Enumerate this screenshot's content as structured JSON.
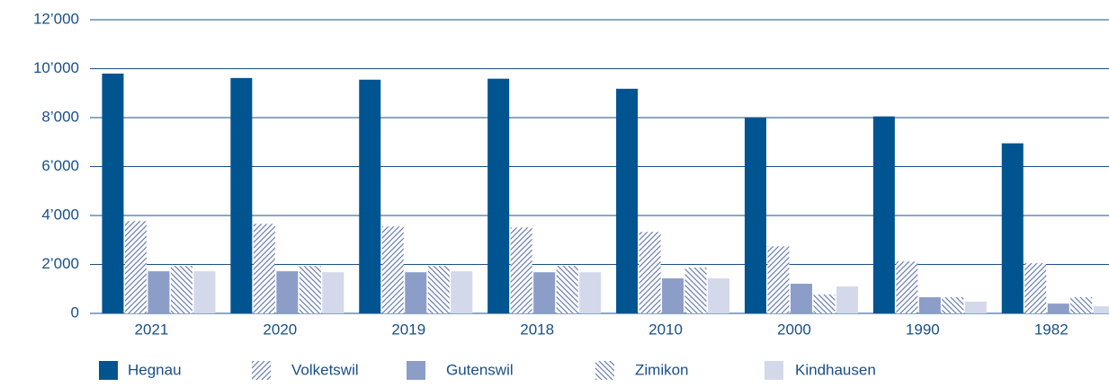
{
  "chart_data": {
    "type": "bar",
    "categories": [
      "2021",
      "2020",
      "2019",
      "2018",
      "2010",
      "2000",
      "1990",
      "1982"
    ],
    "series": [
      {
        "name": "Hegnau",
        "color": "#00548f",
        "values": [
          9800,
          9620,
          9550,
          9590,
          9180,
          7980,
          8050,
          6950
        ]
      },
      {
        "name": "Volketswil",
        "color": "#6f82b2",
        "hatch": "/",
        "values": [
          3770,
          3660,
          3550,
          3510,
          3330,
          2740,
          2120,
          2050
        ]
      },
      {
        "name": "Gutenswil",
        "color": "#8c9ec8",
        "values": [
          1720,
          1720,
          1680,
          1680,
          1430,
          1210,
          660,
          400
        ]
      },
      {
        "name": "Zimikon",
        "color": "#6f82b2",
        "hatch": "\\",
        "values": [
          1940,
          1940,
          1940,
          1940,
          1870,
          770,
          660,
          660
        ]
      },
      {
        "name": "Kindhausen",
        "color": "#d3d8ea",
        "values": [
          1720,
          1680,
          1720,
          1680,
          1430,
          1100,
          480,
          290
        ]
      }
    ],
    "ylim": [
      0,
      12000
    ],
    "yticks": [
      0,
      {
        "value": 2000,
        "label": "2’000"
      },
      {
        "value": 4000,
        "label": "4’000"
      },
      {
        "value": 6000,
        "label": "6’000"
      },
      {
        "value": 8000,
        "label": "8’000"
      },
      {
        "value": 10000,
        "label": "10’000"
      },
      {
        "value": 12000,
        "label": "12’000"
      }
    ],
    "grid": true,
    "legend": "bottom"
  }
}
